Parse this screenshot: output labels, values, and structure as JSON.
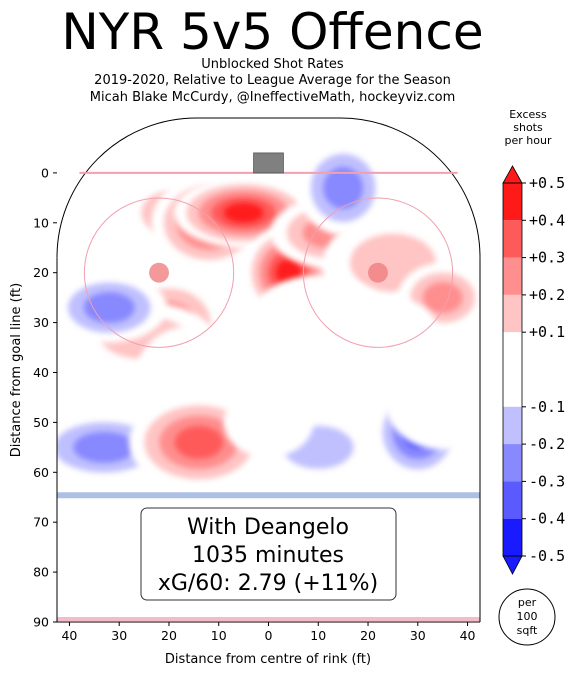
{
  "title": "NYR 5v5 Offence",
  "subtitle_lines": [
    "Unblocked Shot Rates",
    "2019-2020, Relative to League Average for the Season",
    "Micah Blake McCurdy, @IneffectiveMath, hockeyviz.com"
  ],
  "legend_title_lines": [
    "Excess",
    "shots",
    "per hour"
  ],
  "unit_badge_lines": [
    "per",
    "100",
    "sqft"
  ],
  "annotation_lines": [
    "With Deangelo",
    "1035 minutes",
    "xG/60: 2.79 (+11%)"
  ],
  "colors": {
    "strong_positive": "#ff1a1a",
    "positive": "#ff5a5a",
    "mild_positive": "#ffc4c4",
    "neutral": "#ffffff",
    "mild_negative": "#c0c0ff",
    "negative": "#8888ff",
    "strong_negative": "#1a1aff",
    "rink_line": "#f0a0b0",
    "blue_line": "#9eb4e0",
    "net": "#808080"
  },
  "chart_data": {
    "type": "heatmap",
    "xlabel": "Distance from centre of rink (ft)",
    "ylabel": "Distance from goal line (ft)",
    "xlim": [
      -42.5,
      42.5
    ],
    "ylim": [
      90,
      -11
    ],
    "x_ticks": [
      -40,
      -30,
      -20,
      -10,
      0,
      10,
      20,
      30,
      40
    ],
    "x_tick_labels": [
      "40",
      "30",
      "20",
      "10",
      "0",
      "10",
      "20",
      "30",
      "40"
    ],
    "y_ticks": [
      0,
      10,
      20,
      30,
      40,
      50,
      60,
      70,
      80,
      90
    ],
    "y_tick_labels": [
      "0",
      "10",
      "20",
      "30",
      "40",
      "50",
      "60",
      "70",
      "80",
      "90"
    ],
    "colorbar": {
      "levels": [
        -0.5,
        -0.4,
        -0.3,
        -0.2,
        -0.1,
        0.1,
        0.2,
        0.3,
        0.4,
        0.5
      ],
      "tick_labels": [
        "-0.5",
        "-0.4",
        "-0.3",
        "-0.2",
        "-0.1",
        "+0.1",
        "+0.2",
        "+0.3",
        "+0.4",
        "+0.5"
      ],
      "bands": [
        {
          "from": 0.4,
          "to": 0.5,
          "color": "#ff1a1a"
        },
        {
          "from": 0.3,
          "to": 0.4,
          "color": "#ff5a5a"
        },
        {
          "from": 0.2,
          "to": 0.3,
          "color": "#ff8e8e"
        },
        {
          "from": 0.1,
          "to": 0.2,
          "color": "#ffc4c4"
        },
        {
          "from": -0.1,
          "to": 0.1,
          "color": "#ffffff"
        },
        {
          "from": -0.2,
          "to": -0.1,
          "color": "#c0c0ff"
        },
        {
          "from": -0.3,
          "to": -0.2,
          "color": "#8888ff"
        },
        {
          "from": -0.4,
          "to": -0.3,
          "color": "#5a5aff"
        },
        {
          "from": -0.5,
          "to": -0.4,
          "color": "#1a1aff"
        }
      ]
    },
    "regions": [
      {
        "x": -20,
        "y": 8,
        "value": 0.2
      },
      {
        "x": -12,
        "y": 10,
        "value": 0.4
      },
      {
        "x": -5,
        "y": 8,
        "value": 0.45
      },
      {
        "x": 4,
        "y": 20,
        "value": 0.45
      },
      {
        "x": 12,
        "y": 12,
        "value": 0.3
      },
      {
        "x": 25,
        "y": 18,
        "value": 0.2
      },
      {
        "x": 35,
        "y": 25,
        "value": 0.3
      },
      {
        "x": -20,
        "y": 30,
        "value": 0.35
      },
      {
        "x": -25,
        "y": 33,
        "value": 0.2
      },
      {
        "x": 15,
        "y": 3,
        "value": -0.3
      },
      {
        "x": -32,
        "y": 27,
        "value": -0.25
      },
      {
        "x": 10,
        "y": 30,
        "value": -0.15
      },
      {
        "x": 25,
        "y": 32,
        "value": -0.15
      },
      {
        "x": -15,
        "y": 40,
        "value": -0.15
      },
      {
        "x": -33,
        "y": 55,
        "value": -0.3
      },
      {
        "x": 30,
        "y": 52,
        "value": -0.4
      },
      {
        "x": 10,
        "y": 55,
        "value": -0.2
      },
      {
        "x": -14,
        "y": 54,
        "value": 0.4
      },
      {
        "x": 0,
        "y": 50,
        "value": 0.15
      },
      {
        "x": 35,
        "y": 46,
        "value": 0.15
      },
      {
        "x": 33,
        "y": 77,
        "value": 0.15
      },
      {
        "x": -33,
        "y": 75,
        "value": 0.15
      }
    ]
  }
}
